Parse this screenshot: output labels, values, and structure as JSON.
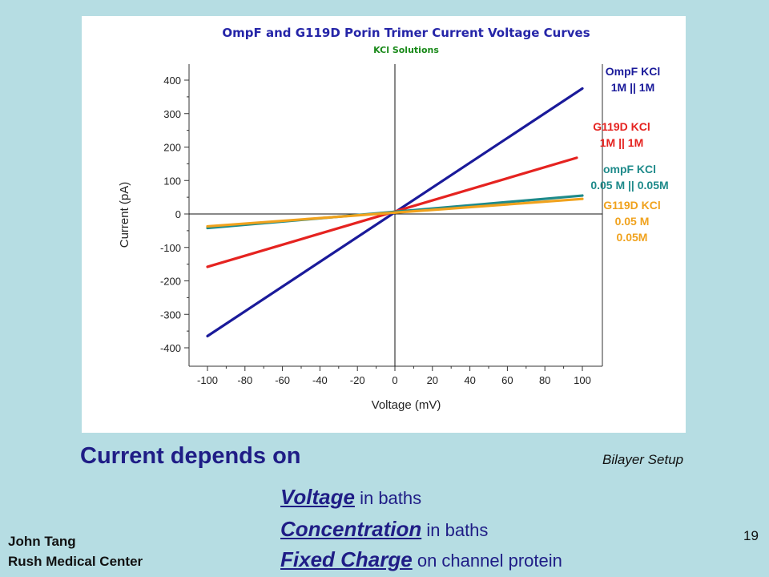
{
  "chart_data": {
    "type": "line",
    "title": "OmpF and G119D Porin Trimer Current Voltage Curves",
    "subtitle": "KCl Solutions",
    "xlabel": "Voltage (mV)",
    "ylabel": "Current (pA)",
    "xlim": [
      -100,
      100
    ],
    "ylim": [
      -420,
      420
    ],
    "x_ticks": [
      -100,
      -80,
      -60,
      -40,
      -20,
      0,
      20,
      40,
      60,
      80,
      100
    ],
    "y_ticks": [
      -400,
      -300,
      -200,
      -100,
      0,
      100,
      200,
      300,
      400
    ],
    "grid": false,
    "series": [
      {
        "name_lines": [
          "OmpF KCl",
          "1M || 1M"
        ],
        "color": "#1a1a9a",
        "x": [
          -100,
          100
        ],
        "y": [
          -365,
          375
        ]
      },
      {
        "name_lines": [
          "G119D KCl",
          "1M || 1M"
        ],
        "color": "#e52320",
        "x": [
          -100,
          97
        ],
        "y": [
          -158,
          168
        ]
      },
      {
        "name_lines": [
          "ompF KCl",
          "0.05 M || 0.05M"
        ],
        "color": "#1e8a8a",
        "x": [
          -100,
          100
        ],
        "y": [
          -42,
          55
        ]
      },
      {
        "name_lines": [
          "G119D KCl",
          "0.05 M",
          "0.05M"
        ],
        "color": "#f0a21d",
        "x": [
          -100,
          100
        ],
        "y": [
          -37,
          45
        ]
      }
    ],
    "title_color": "#2525a8",
    "subtitle_color": "#1a8a1a"
  },
  "slide": {
    "heading": "Current depends on",
    "caption": "Bilayer Setup",
    "factors": [
      {
        "term": "Voltage",
        "rest": "in baths"
      },
      {
        "term": "Concentration",
        "rest": "in baths"
      },
      {
        "term": "Fixed Charge",
        "rest": "on channel protein"
      }
    ],
    "author": [
      "John Tang",
      "Rush Medical Center"
    ],
    "page_number": "19"
  }
}
